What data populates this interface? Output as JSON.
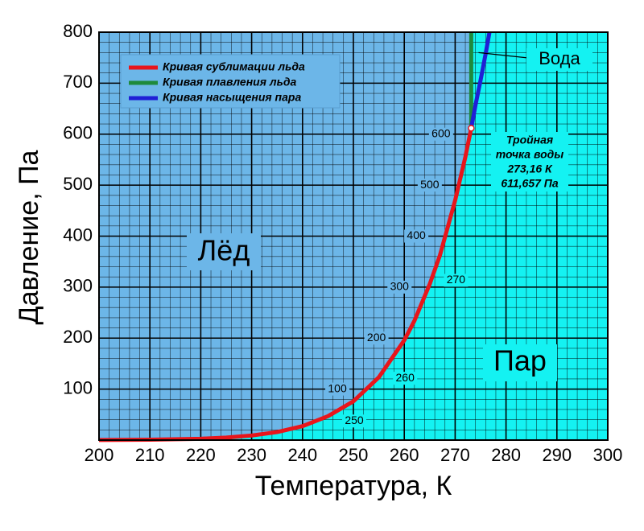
{
  "chart_data": {
    "type": "line",
    "xlabel": "Температура, К",
    "ylabel": "Давление, Па",
    "xlim": [
      200,
      300
    ],
    "ylim": [
      0,
      800
    ],
    "xticks": [
      200,
      210,
      220,
      230,
      240,
      250,
      260,
      270,
      280,
      290,
      300
    ],
    "yticks": [
      100,
      200,
      300,
      400,
      500,
      600,
      700,
      800
    ],
    "grid": true,
    "minor_divisions": 5,
    "legend": "upper left",
    "series": [
      {
        "name": "Кривая сублимации льда",
        "color": "#e8151b",
        "x": [
          200,
          210,
          220,
          225,
          230,
          235,
          240,
          245,
          250,
          255,
          260,
          262,
          265,
          267,
          270,
          272,
          273.16
        ],
        "values": [
          0.16,
          0.7,
          2.65,
          4.98,
          8.97,
          15.7,
          27.3,
          46.8,
          76,
          123.2,
          195.8,
          234,
          305.8,
          362,
          470.1,
          555,
          611.657
        ]
      },
      {
        "name": "Кривая плавления льда",
        "color": "#1e8a3c",
        "x": [
          273.16,
          273.16
        ],
        "values": [
          611.657,
          800
        ]
      },
      {
        "name": "Кривая насыщения пара",
        "color": "#1f1fd6",
        "x": [
          273.16,
          274,
          275,
          276,
          276.75
        ],
        "values": [
          611.657,
          657,
          706,
          758,
          800
        ]
      }
    ],
    "regions": [
      {
        "name": "Лёд",
        "color": "#6cb6e8"
      },
      {
        "name": "Пар",
        "color": "#14f2f2"
      },
      {
        "name": "Вода",
        "color": "#14f2f2"
      }
    ],
    "curve_pressure_labels": [
      100,
      200,
      300,
      400,
      500,
      600
    ],
    "curve_temperature_labels": [
      250,
      260,
      270
    ],
    "triple_point": {
      "x": 273.16,
      "y": 611.657,
      "label": [
        "Тройная",
        "точка воды",
        "273,16 К",
        "611,657 Па"
      ]
    }
  }
}
